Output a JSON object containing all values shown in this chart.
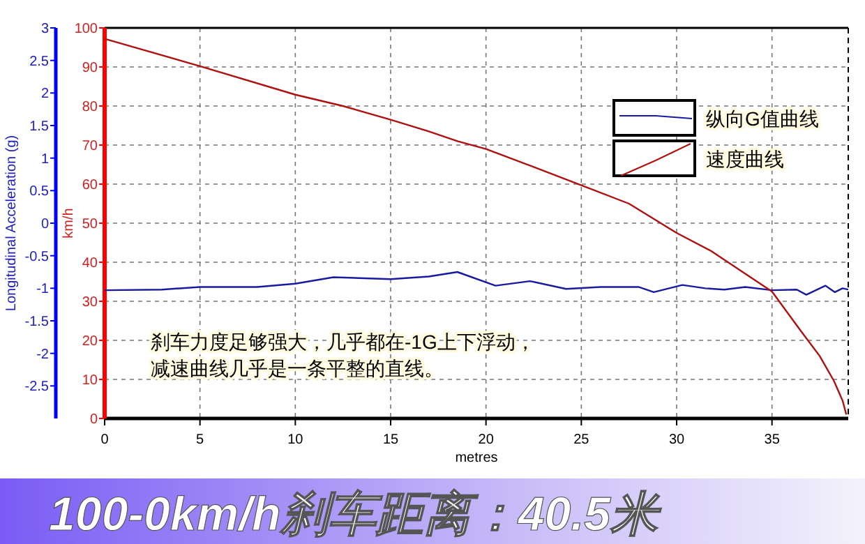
{
  "chart_data": {
    "type": "line",
    "title": "100-0km/h刹车距离：40.5米",
    "xlabel": "metres",
    "ylabel": "Longitudinal Acceleration (g)",
    "y2label": "km/h",
    "annotations": [
      "刹车力度足够强大，几乎都在-1G上下浮动，",
      "减速曲线几乎是一条平整的直线。"
    ],
    "xlim": [
      0,
      39
    ],
    "xticks": [
      0,
      5,
      10,
      15,
      20,
      25,
      30,
      35
    ],
    "ylim": [
      -3,
      3
    ],
    "yticks": [
      3,
      2.5,
      2,
      1.5,
      1,
      0.5,
      0,
      -0.5,
      -1,
      -1.5,
      -2,
      -2.5
    ],
    "y2lim": [
      0,
      100
    ],
    "y2ticks": [
      0,
      10,
      20,
      30,
      40,
      50,
      60,
      70,
      80,
      90,
      100
    ],
    "grid": true,
    "legend": "top right",
    "line_style": "solid",
    "marker": "none",
    "series": [
      {
        "name": "纵向G值曲线",
        "color": "#1a1aa0",
        "axis": "y",
        "x": [
          0,
          3,
          5,
          8,
          10,
          12,
          15,
          17,
          18.5,
          20.5,
          22.3,
          24.2,
          26,
          28,
          28.8,
          30.3,
          31.5,
          32.5,
          33.6,
          35,
          36.3,
          36.8,
          37.8,
          38.3,
          38.7,
          39
        ],
        "values": [
          -1.03,
          -1.02,
          -0.98,
          -0.98,
          -0.93,
          -0.83,
          -0.86,
          -0.82,
          -0.75,
          -0.96,
          -0.89,
          -1.01,
          -0.98,
          -0.98,
          -1.06,
          -0.95,
          -1.0,
          -1.02,
          -0.98,
          -1.03,
          -1.02,
          -1.1,
          -0.96,
          -1.06,
          -1.0,
          -1.02
        ]
      },
      {
        "name": "速度曲线",
        "color": "#b01010",
        "axis": "y2",
        "x": [
          0,
          5,
          10,
          12.5,
          15,
          17,
          18.5,
          20,
          22.5,
          25,
          27.5,
          30,
          31.8,
          35,
          36.5,
          37.5,
          38.25,
          38.7,
          38.9
        ],
        "values": [
          97.2,
          90.2,
          82.9,
          80,
          76.5,
          73.5,
          71,
          69,
          64.4,
          59.7,
          55,
          47.5,
          42.9,
          32.5,
          22.5,
          16,
          9.6,
          4.6,
          1
        ]
      }
    ]
  }
}
